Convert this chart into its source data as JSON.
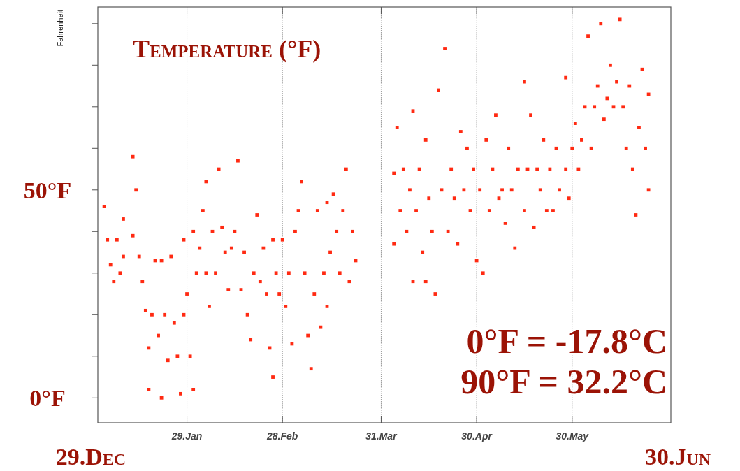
{
  "chart_data": {
    "type": "scatter",
    "title": "Temperature (°F)",
    "ylabel": "Fahrenheit",
    "annotations": [
      "0°F = -17.8°C",
      "90°F = 32.2°C",
      "29.Dec",
      "30.Jun"
    ],
    "xlim": [
      "--01-01",
      "--06-30"
    ],
    "xticks": [
      {
        "value": "--01-29",
        "label": "29.Jan"
      },
      {
        "value": "--02-28",
        "label": "28.Feb"
      },
      {
        "value": "--03-31",
        "label": "31.Mar"
      },
      {
        "value": "--04-30",
        "label": "30.Apr"
      },
      {
        "value": "--05-30",
        "label": "30.May"
      }
    ],
    "ylim": [
      -6,
      94
    ],
    "yticks": [
      {
        "value": 0,
        "label": "0°F"
      },
      {
        "value": 10,
        "label": null
      },
      {
        "value": 20,
        "label": null
      },
      {
        "value": 30,
        "label": null
      },
      {
        "value": 40,
        "label": null
      },
      {
        "value": 50,
        "label": "50°F"
      },
      {
        "value": 60,
        "label": null
      },
      {
        "value": 70,
        "label": null
      },
      {
        "value": 80,
        "label": null
      },
      {
        "value": 90,
        "label": null
      }
    ],
    "grid": "x",
    "marker": "square",
    "series": [
      {
        "color": "#ff2a12",
        "x": [
          "--01-03",
          "--01-04",
          "--01-05",
          "--01-06",
          "--01-07",
          "--01-08",
          "--01-09",
          "--01-09",
          "--01-12",
          "--01-12",
          "--01-13",
          "--01-14",
          "--01-15",
          "--01-16",
          "--01-17",
          "--01-17",
          "--01-18",
          "--01-19",
          "--01-20",
          "--01-21",
          "--01-21",
          "--01-22",
          "--01-23",
          "--01-24",
          "--01-25",
          "--01-26",
          "--01-27",
          "--01-28",
          "--01-28",
          "--01-29",
          "--01-30",
          "--01-31",
          "--01-31",
          "--02-01",
          "--02-02",
          "--02-03",
          "--02-04",
          "--02-04",
          "--02-05",
          "--02-06",
          "--02-07",
          "--02-08",
          "--02-09",
          "--02-10",
          "--02-11",
          "--02-12",
          "--02-13",
          "--02-14",
          "--02-15",
          "--02-16",
          "--02-17",
          "--02-18",
          "--02-19",
          "--02-20",
          "--02-21",
          "--02-22",
          "--02-23",
          "--02-24",
          "--02-25",
          "--02-25",
          "--02-26",
          "--02-27",
          "--02-28",
          "--03-01",
          "--03-02",
          "--03-03",
          "--03-04",
          "--03-05",
          "--03-06",
          "--03-07",
          "--03-08",
          "--03-09",
          "--03-10",
          "--03-11",
          "--03-12",
          "--03-13",
          "--03-14",
          "--03-14",
          "--03-15",
          "--03-16",
          "--03-17",
          "--03-18",
          "--03-19",
          "--03-20",
          "--03-21",
          "--03-22",
          "--03-23",
          "--04-04",
          "--04-04",
          "--04-05",
          "--04-06",
          "--04-07",
          "--04-08",
          "--04-09",
          "--04-10",
          "--04-10",
          "--04-11",
          "--04-12",
          "--04-13",
          "--04-14",
          "--04-14",
          "--04-15",
          "--04-16",
          "--04-17",
          "--04-18",
          "--04-19",
          "--04-20",
          "--04-21",
          "--04-22",
          "--04-23",
          "--04-24",
          "--04-25",
          "--04-26",
          "--04-27",
          "--04-28",
          "--04-29",
          "--04-30",
          "--05-01",
          "--05-02",
          "--05-03",
          "--05-04",
          "--05-05",
          "--05-06",
          "--05-07",
          "--05-08",
          "--05-09",
          "--05-10",
          "--05-11",
          "--05-12",
          "--05-13",
          "--05-15",
          "--05-15",
          "--05-16",
          "--05-17",
          "--05-18",
          "--05-19",
          "--05-20",
          "--05-21",
          "--05-22",
          "--05-23",
          "--05-24",
          "--05-25",
          "--05-26",
          "--05-28",
          "--05-28",
          "--05-29",
          "--05-30",
          "--05-31",
          "--06-01",
          "--06-02",
          "--06-03",
          "--06-04",
          "--06-05",
          "--06-06",
          "--06-07",
          "--06-08",
          "--06-09",
          "--06-10",
          "--06-11",
          "--06-12",
          "--06-13",
          "--06-14",
          "--06-15",
          "--06-16",
          "--06-17",
          "--06-18",
          "--06-19",
          "--06-20",
          "--06-21",
          "--06-22",
          "--06-23",
          "--06-23"
        ],
        "values": [
          46,
          38,
          32,
          28,
          38,
          30,
          43,
          34,
          58,
          39,
          50,
          34,
          28,
          21,
          12,
          2,
          20,
          33,
          15,
          0,
          33,
          20,
          9,
          34,
          18,
          10,
          1,
          20,
          38,
          25,
          10,
          2,
          40,
          30,
          36,
          45,
          52,
          30,
          22,
          40,
          30,
          55,
          41,
          35,
          26,
          36,
          40,
          57,
          26,
          35,
          20,
          14,
          30,
          44,
          28,
          36,
          25,
          12,
          5,
          38,
          30,
          25,
          38,
          22,
          30,
          13,
          40,
          45,
          52,
          30,
          15,
          7,
          25,
          45,
          17,
          30,
          47,
          22,
          35,
          49,
          40,
          30,
          45,
          55,
          28,
          40,
          33,
          54,
          37,
          65,
          45,
          55,
          40,
          50,
          69,
          28,
          45,
          55,
          35,
          62,
          28,
          48,
          40,
          25,
          74,
          50,
          84,
          40,
          55,
          48,
          37,
          64,
          50,
          60,
          45,
          55,
          33,
          50,
          30,
          62,
          45,
          55,
          68,
          48,
          50,
          42,
          60,
          50,
          36,
          55,
          76,
          45,
          55,
          68,
          41,
          55,
          50,
          62,
          45,
          55,
          45,
          60,
          50,
          77,
          55,
          48,
          60,
          66,
          55,
          62,
          70,
          87,
          60,
          70,
          75,
          90,
          67,
          72,
          80,
          70,
          76,
          91,
          70,
          60,
          75,
          55,
          44,
          65,
          79,
          60,
          50,
          73
        ]
      }
    ]
  }
}
